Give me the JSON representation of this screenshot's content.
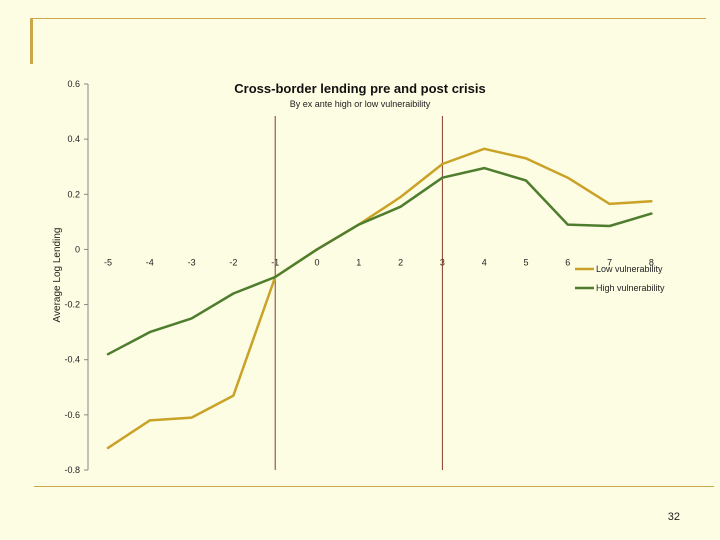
{
  "slide": {
    "page_number": "32"
  },
  "chart_data": {
    "type": "line",
    "title": "Cross-border lending pre and post crisis",
    "subtitle": "By ex ante high or low vulneraibility",
    "xlabel": "",
    "ylabel": "Average Log Lending",
    "x": [
      -5,
      -4,
      -3,
      -2,
      -1,
      0,
      1,
      2,
      3,
      4,
      5,
      6,
      7,
      8
    ],
    "x_tick_labels": [
      "-5",
      "-4",
      "-3",
      "-2",
      "-1",
      "0",
      "1",
      "2",
      "3",
      "4",
      "5",
      "6",
      "7",
      "8"
    ],
    "y_tick_values": [
      0.6,
      0.4,
      0.2,
      0,
      -0.2,
      -0.4,
      -0.6,
      -0.8
    ],
    "y_tick_labels": [
      "0.6",
      "0.4",
      "0.2",
      "0",
      "-0.2",
      "-0.4",
      "-0.6",
      "-0.8"
    ],
    "ylim": [
      -0.8,
      0.6
    ],
    "xlim": [
      -5.5,
      8.5
    ],
    "grid": false,
    "legend_position": "right",
    "vertical_markers": [
      -1,
      3
    ],
    "series": [
      {
        "name": "Low vulnerability",
        "color": "#c9a227",
        "values": [
          -0.72,
          -0.62,
          -0.61,
          -0.53,
          -0.1,
          0.0,
          0.09,
          0.19,
          0.31,
          0.365,
          0.33,
          0.26,
          0.165,
          0.175
        ]
      },
      {
        "name": "High vulnerability",
        "color": "#4e7d2e",
        "values": [
          -0.38,
          -0.3,
          -0.25,
          -0.16,
          -0.1,
          0.0,
          0.09,
          0.155,
          0.26,
          0.295,
          0.25,
          0.09,
          0.085,
          0.13
        ]
      }
    ],
    "marker_color": "#8b3a2a"
  }
}
